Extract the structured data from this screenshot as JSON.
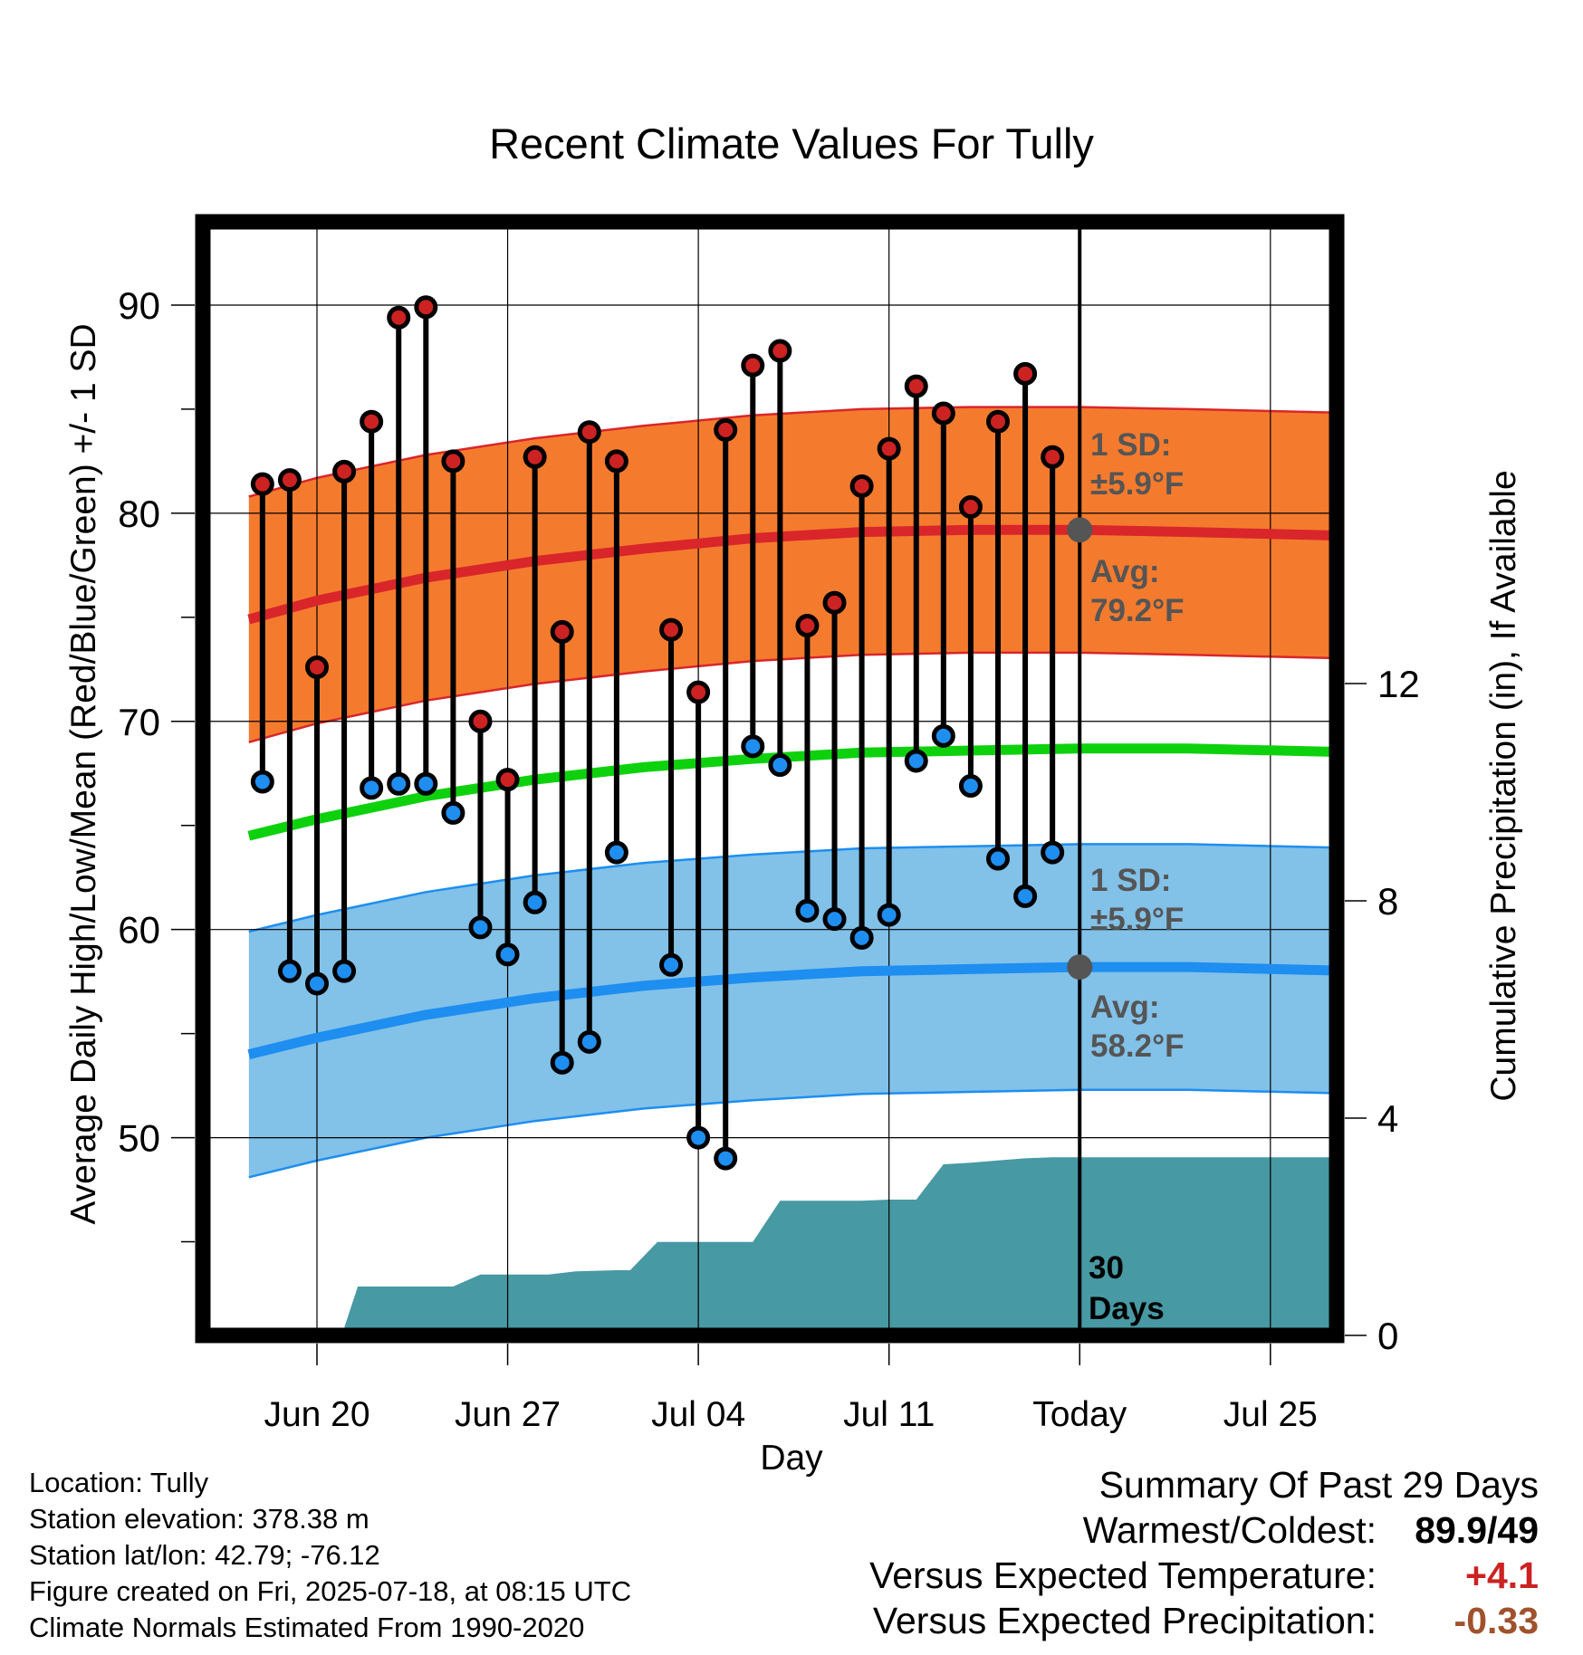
{
  "chart_data": {
    "type": "line",
    "title": "Recent Climate Values For Tully",
    "xlabel": "Day",
    "ylabel": "Average Daily High/Low/Mean (Red/Blue/Green) +/- 1 SD",
    "y2label": "Cumulative Precipitation (in), If Available",
    "ylim": [
      40.5,
      94
    ],
    "y2lim": [
      0,
      20.5
    ],
    "xlim": [
      -2.5,
      38.5
    ],
    "x_origin_label": "Jun 20",
    "yticks": [
      50,
      60,
      70,
      80,
      90
    ],
    "y2ticks": [
      0,
      4,
      8,
      12
    ],
    "xticks": [
      {
        "day": 0,
        "label": "Jun 20"
      },
      {
        "day": 7,
        "label": "Jun 27"
      },
      {
        "day": 14,
        "label": "Jul 04"
      },
      {
        "day": 21,
        "label": "Jul 11"
      },
      {
        "day": 28,
        "label": "Today"
      },
      {
        "day": 35,
        "label": "Jul 25"
      }
    ],
    "grid": true,
    "today_day": 28,
    "daily": {
      "days": [
        -2,
        -1,
        0,
        1,
        2,
        3,
        4,
        5,
        6,
        7,
        8,
        9,
        10,
        11,
        13,
        14,
        15,
        16,
        17,
        18,
        19,
        20,
        21,
        22,
        23,
        24,
        25,
        26,
        27
      ],
      "highs": [
        81.4,
        81.6,
        72.6,
        82.0,
        84.4,
        89.4,
        89.9,
        82.5,
        70.0,
        67.2,
        82.7,
        74.3,
        83.9,
        82.5,
        74.4,
        71.4,
        84.0,
        87.1,
        87.8,
        74.6,
        75.7,
        81.3,
        83.1,
        86.1,
        84.8,
        80.3,
        84.4,
        86.7,
        82.7
      ],
      "lows": [
        67.1,
        58.0,
        57.4,
        58.0,
        66.8,
        67.0,
        67.0,
        65.6,
        60.1,
        58.8,
        61.3,
        53.6,
        54.6,
        63.7,
        58.3,
        50.0,
        49.0,
        68.8,
        67.9,
        60.9,
        60.5,
        59.6,
        60.7,
        68.1,
        69.3,
        66.9,
        63.4,
        61.6,
        63.7
      ]
    },
    "normals": {
      "days": [
        -2.5,
        0,
        4,
        8,
        12,
        16,
        20,
        24,
        28,
        32,
        38.5
      ],
      "high_mean": [
        74.9,
        75.8,
        76.9,
        77.7,
        78.3,
        78.8,
        79.1,
        79.2,
        79.2,
        79.1,
        78.9
      ],
      "low_mean": [
        54.0,
        54.8,
        55.9,
        56.7,
        57.3,
        57.7,
        58.0,
        58.1,
        58.2,
        58.2,
        58.0
      ],
      "mean": [
        64.5,
        65.3,
        66.4,
        67.2,
        67.8,
        68.2,
        68.5,
        68.6,
        68.7,
        68.7,
        68.5
      ],
      "high_sd": 5.9,
      "low_sd": 5.9
    },
    "precip_cumulative": {
      "days": [
        -2.5,
        -0.5,
        -0.5,
        1,
        1.5,
        5,
        6,
        8.5,
        9.5,
        11,
        11.5,
        12.5,
        14,
        16,
        17,
        20,
        21,
        22,
        23,
        24,
        25,
        26,
        27,
        38.5
      ],
      "values": [
        0,
        0,
        0.14,
        0.14,
        0.9,
        0.9,
        1.12,
        1.12,
        1.18,
        1.2,
        1.2,
        1.72,
        1.72,
        1.72,
        2.48,
        2.48,
        2.5,
        2.5,
        3.15,
        3.18,
        3.22,
        3.26,
        3.28,
        3.28
      ]
    },
    "annotations": {
      "high_sd_label": "1 SD:",
      "high_sd_value": "±5.9°F",
      "high_avg_label": "Avg:",
      "high_avg_value": "79.2°F",
      "low_sd_label": "1 SD:",
      "low_sd_value": "±5.9°F",
      "low_avg_label": "Avg:",
      "low_avg_value": "58.2°F",
      "window_number": "30",
      "window_unit": "Days"
    },
    "colors": {
      "high_band": "#f47b2e",
      "high_line": "#d9262a",
      "low_band": "#82c1e8",
      "low_line": "#1e8ef0",
      "mean_line": "#0ed10e",
      "precip": "#4799a3",
      "high_dot": "#cc2222",
      "low_dot": "#1e8ef0",
      "annotation": "#555555"
    }
  },
  "footer": {
    "location": "Location: Tully",
    "elevation": "Station elevation: 378.38 m",
    "latlon": "Station lat/lon: 42.79; -76.12",
    "created": "Figure created on Fri, 2025-07-18, at 08:15 UTC",
    "normals": "Climate Normals Estimated From 1990-2020"
  },
  "summary": {
    "title": "Summary Of Past 29 Days",
    "warmest_label": "Warmest/Coldest:",
    "warmest_value": "89.9/49",
    "temp_label": "Versus Expected Temperature:",
    "temp_value": "+4.1",
    "temp_color": "#cc2222",
    "precip_label": "Versus Expected Precipitation:",
    "precip_value": "-0.33",
    "precip_color": "#a0522d"
  }
}
